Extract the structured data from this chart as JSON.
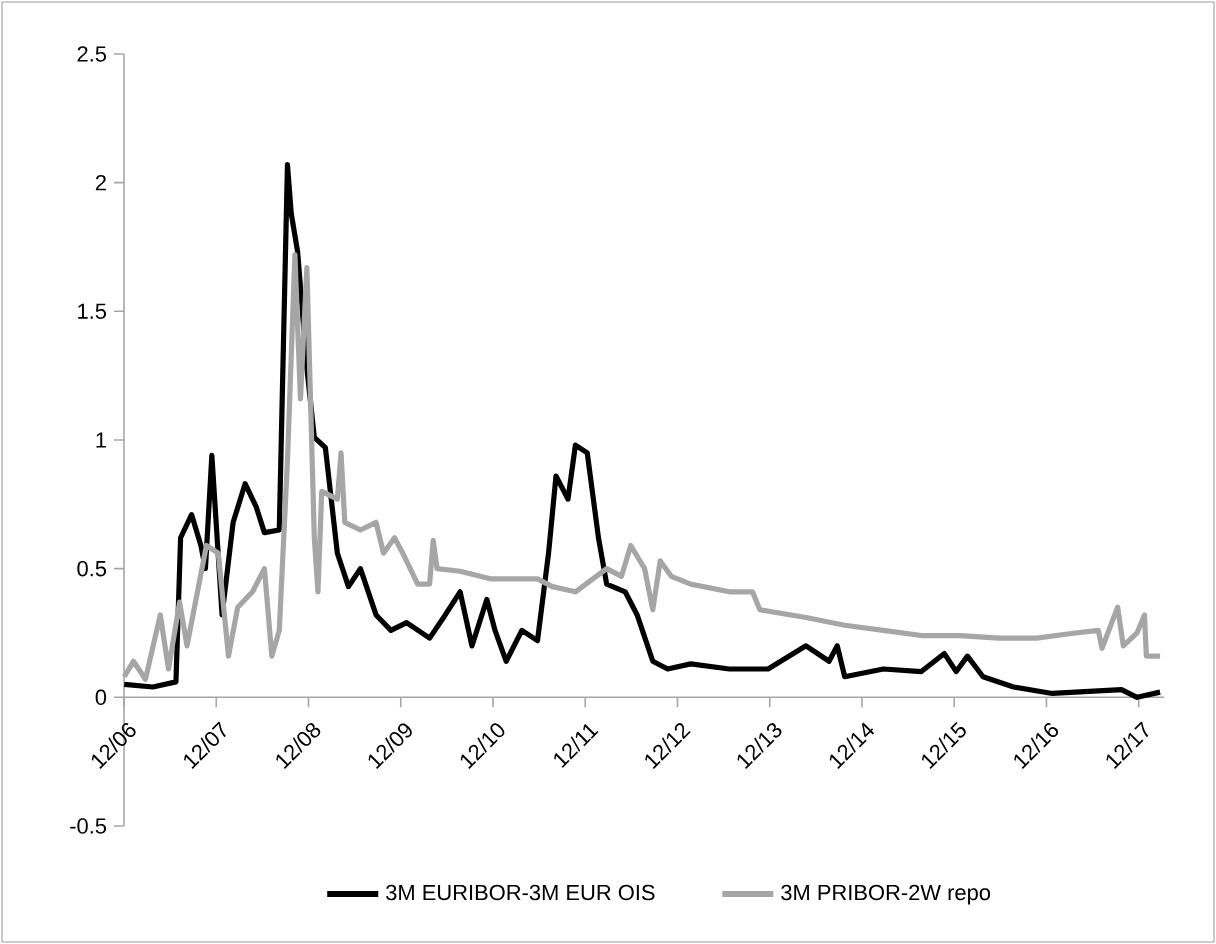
{
  "chart_data": {
    "type": "line",
    "xlim": [
      "2006-12-01",
      "2018-03-10"
    ],
    "xticks": [
      {
        "value": "2006-12",
        "label": "12/06"
      },
      {
        "value": "2007-12",
        "label": "12/07"
      },
      {
        "value": "2008-12",
        "label": "12/08"
      },
      {
        "value": "2009-12",
        "label": "12/09"
      },
      {
        "value": "2010-12",
        "label": "12/10"
      },
      {
        "value": "2011-12",
        "label": "12/11"
      },
      {
        "value": "2012-12",
        "label": "12/12"
      },
      {
        "value": "2013-12",
        "label": "12/13"
      },
      {
        "value": "2014-12",
        "label": "12/14"
      },
      {
        "value": "2015-12",
        "label": "12/15"
      },
      {
        "value": "2016-12",
        "label": "12/16"
      },
      {
        "value": "2017-12",
        "label": "12/17"
      }
    ],
    "ylim": [
      -0.5,
      2.5
    ],
    "yticks": [
      -0.5,
      0,
      0.5,
      1,
      1.5,
      2,
      2.5
    ],
    "legend": "bottom",
    "marker": "none",
    "line_style": "solid",
    "series": [
      {
        "name": "3M EURIBOR-3M EUR OIS",
        "color": "#000000",
        "x": [
          "2006-12-02",
          "2007-03-24",
          "2007-06-24",
          "2007-07-12",
          "2007-08-25",
          "2007-10-01",
          "2007-10-19",
          "2007-11-14",
          "2007-12-24",
          "2008-02-07",
          "2008-03-24",
          "2008-05-07",
          "2008-06-09",
          "2008-08-07",
          "2008-09-09",
          "2008-09-24",
          "2008-10-19",
          "2008-11-25",
          "2008-12-24",
          "2009-02-07",
          "2009-03-24",
          "2009-05-07",
          "2009-06-24",
          "2009-08-25",
          "2009-10-23",
          "2009-12-24",
          "2010-03-24",
          "2010-05-25",
          "2010-07-23",
          "2010-09-09",
          "2010-11-07",
          "2010-12-09",
          "2011-01-23",
          "2011-03-24",
          "2011-05-25",
          "2011-07-08",
          "2011-08-07",
          "2011-09-24",
          "2011-10-23",
          "2011-12-09",
          "2012-01-23",
          "2012-02-25",
          "2012-05-07",
          "2012-06-24",
          "2012-08-25",
          "2012-10-23",
          "2013-01-23",
          "2013-06-24",
          "2013-11-25",
          "2014-04-23",
          "2014-07-23",
          "2014-08-25",
          "2014-09-24",
          "2015-02-25",
          "2015-07-23",
          "2015-10-23",
          "2015-12-09",
          "2016-01-23",
          "2016-03-24",
          "2016-07-23",
          "2016-12-24",
          "2017-03-24",
          "2017-09-24",
          "2017-11-25",
          "2018-02-25"
        ],
        "values": [
          0.05,
          0.04,
          0.06,
          0.62,
          0.71,
          0.59,
          0.5,
          0.94,
          0.32,
          0.68,
          0.83,
          0.74,
          0.64,
          0.65,
          2.07,
          1.88,
          1.73,
          1.28,
          1.01,
          0.97,
          0.56,
          0.43,
          0.5,
          0.32,
          0.26,
          0.29,
          0.23,
          0.32,
          0.41,
          0.2,
          0.38,
          0.26,
          0.14,
          0.26,
          0.22,
          0.56,
          0.86,
          0.77,
          0.98,
          0.95,
          0.62,
          0.44,
          0.41,
          0.32,
          0.14,
          0.11,
          0.13,
          0.11,
          0.11,
          0.2,
          0.14,
          0.2,
          0.08,
          0.11,
          0.1,
          0.17,
          0.1,
          0.16,
          0.08,
          0.04,
          0.015,
          0.02,
          0.03,
          0.0,
          0.02
        ]
      },
      {
        "name": "3M PRIBOR-2W repo",
        "color": "#a6a6a6",
        "x": [
          "2006-12-02",
          "2007-01-08",
          "2007-02-25",
          "2007-04-23",
          "2007-05-25",
          "2007-07-08",
          "2007-08-07",
          "2007-10-23",
          "2007-12-09",
          "2008-01-19",
          "2008-02-25",
          "2008-04-23",
          "2008-06-09",
          "2008-07-08",
          "2008-08-07",
          "2008-09-09",
          "2008-10-08",
          "2008-10-30",
          "2008-11-25",
          "2008-12-24",
          "2009-01-08",
          "2009-01-23",
          "2009-03-24",
          "2009-04-08",
          "2009-04-23",
          "2009-06-24",
          "2009-08-25",
          "2009-09-24",
          "2009-11-07",
          "2009-12-09",
          "2010-02-07",
          "2010-03-24",
          "2010-04-08",
          "2010-04-23",
          "2010-07-23",
          "2010-11-25",
          "2011-05-25",
          "2011-07-23",
          "2011-10-23",
          "2012-02-25",
          "2012-04-23",
          "2012-05-29",
          "2012-07-23",
          "2012-08-25",
          "2012-09-24",
          "2012-11-07",
          "2013-01-23",
          "2013-06-24",
          "2013-09-24",
          "2013-10-23",
          "2014-04-23",
          "2014-09-24",
          "2015-02-25",
          "2015-07-23",
          "2015-12-24",
          "2016-05-25",
          "2016-10-23",
          "2017-03-24",
          "2017-06-24",
          "2017-07-08",
          "2017-09-09",
          "2017-10-01",
          "2017-11-25",
          "2017-12-24",
          "2018-01-01",
          "2018-02-25"
        ],
        "values": [
          0.08,
          0.14,
          0.07,
          0.32,
          0.11,
          0.37,
          0.2,
          0.59,
          0.56,
          0.16,
          0.35,
          0.41,
          0.5,
          0.16,
          0.26,
          0.92,
          1.72,
          1.16,
          1.67,
          0.62,
          0.41,
          0.8,
          0.77,
          0.95,
          0.68,
          0.65,
          0.68,
          0.56,
          0.62,
          0.56,
          0.44,
          0.44,
          0.61,
          0.5,
          0.49,
          0.46,
          0.46,
          0.43,
          0.41,
          0.5,
          0.47,
          0.59,
          0.5,
          0.34,
          0.53,
          0.47,
          0.44,
          0.41,
          0.41,
          0.34,
          0.31,
          0.28,
          0.26,
          0.24,
          0.24,
          0.23,
          0.23,
          0.25,
          0.26,
          0.19,
          0.35,
          0.2,
          0.25,
          0.32,
          0.16,
          0.16
        ]
      }
    ]
  }
}
